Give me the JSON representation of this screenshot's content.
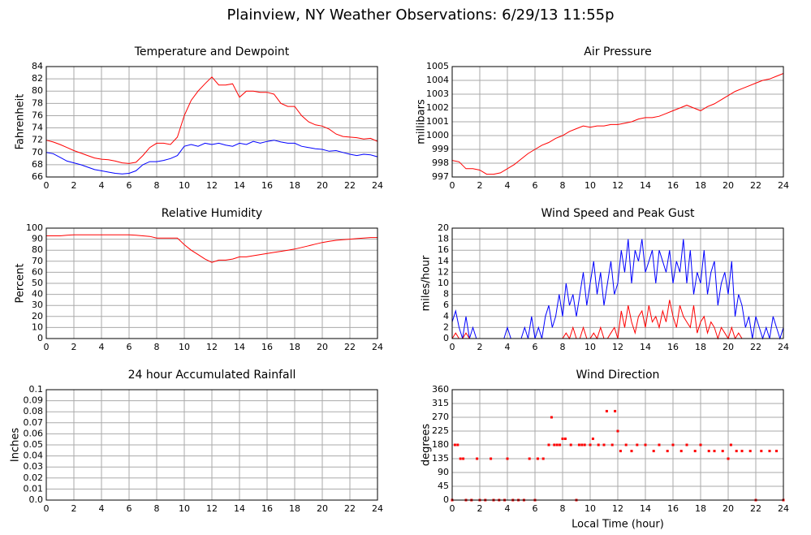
{
  "title": "Plainview, NY Weather Observations: 6/29/13 11:55p",
  "chart_data": [
    {
      "type": "line",
      "title": "Temperature and Dewpoint",
      "ylabel": "Fahrenheit",
      "x": [
        0,
        0.5,
        1,
        1.5,
        2,
        2.5,
        3,
        3.5,
        4,
        4.5,
        5,
        5.5,
        6,
        6.5,
        7,
        7.5,
        8,
        8.5,
        9,
        9.5,
        10,
        10.5,
        11,
        11.5,
        12,
        12.5,
        13,
        13.5,
        14,
        14.5,
        15,
        15.5,
        16,
        16.5,
        17,
        17.5,
        18,
        18.5,
        19,
        19.5,
        20,
        20.5,
        21,
        21.5,
        22,
        22.5,
        23,
        23.5,
        24
      ],
      "series": [
        {
          "color": "#ff0000",
          "values": [
            72,
            71.7,
            71.3,
            70.8,
            70.3,
            69.9,
            69.5,
            69.1,
            68.9,
            68.8,
            68.6,
            68.3,
            68.2,
            68.4,
            69.5,
            70.8,
            71.5,
            71.5,
            71.3,
            72.5,
            76,
            78.5,
            80,
            81.2,
            82.3,
            81,
            81,
            81.2,
            79,
            80,
            80,
            79.8,
            79.8,
            79.5,
            78,
            77.5,
            77.5,
            76,
            75,
            74.5,
            74.3,
            73.8,
            73,
            72.6,
            72.5,
            72.4,
            72.2,
            72.3,
            71.8
          ]
        },
        {
          "color": "#0000ff",
          "values": [
            70,
            69.8,
            69.2,
            68.6,
            68.3,
            68,
            67.6,
            67.2,
            67,
            66.8,
            66.6,
            66.5,
            66.6,
            67,
            68,
            68.5,
            68.5,
            68.7,
            69,
            69.5,
            71,
            71.3,
            71,
            71.5,
            71.3,
            71.5,
            71.2,
            71,
            71.5,
            71.3,
            71.8,
            71.5,
            71.8,
            72,
            71.7,
            71.5,
            71.5,
            71,
            70.8,
            70.6,
            70.5,
            70.2,
            70.3,
            70,
            69.7,
            69.5,
            69.7,
            69.6,
            69.3
          ]
        }
      ],
      "xlim": [
        0,
        24
      ],
      "xticks": [
        0,
        2,
        4,
        6,
        8,
        10,
        12,
        14,
        16,
        18,
        20,
        22,
        24
      ],
      "ylim": [
        66,
        84
      ],
      "yticks": [
        66,
        68,
        70,
        72,
        74,
        76,
        78,
        80,
        82,
        84
      ],
      "grid": true
    },
    {
      "type": "line",
      "title": "Air Pressure",
      "ylabel": "millibars",
      "x": [
        0,
        0.5,
        1,
        1.5,
        2,
        2.5,
        3,
        3.5,
        4,
        4.5,
        5,
        5.5,
        6,
        6.5,
        7,
        7.5,
        8,
        8.5,
        9,
        9.5,
        10,
        10.5,
        11,
        11.5,
        12,
        12.5,
        13,
        13.5,
        14,
        14.5,
        15,
        15.5,
        16,
        16.5,
        17,
        17.5,
        18,
        18.5,
        19,
        19.5,
        20,
        20.5,
        21,
        21.5,
        22,
        22.5,
        23,
        23.5,
        24
      ],
      "series": [
        {
          "color": "#ff0000",
          "values": [
            998.2,
            998.1,
            997.6,
            997.6,
            997.5,
            997.2,
            997.2,
            997.3,
            997.6,
            997.9,
            998.3,
            998.7,
            999,
            999.3,
            999.5,
            999.8,
            1000,
            1000.3,
            1000.5,
            1000.7,
            1000.6,
            1000.7,
            1000.7,
            1000.8,
            1000.8,
            1000.9,
            1001,
            1001.2,
            1001.3,
            1001.3,
            1001.4,
            1001.6,
            1001.8,
            1002,
            1002.2,
            1002,
            1001.8,
            1002.1,
            1002.3,
            1002.6,
            1002.9,
            1003.2,
            1003.4,
            1003.6,
            1003.8,
            1004,
            1004.1,
            1004.3,
            1004.5
          ]
        }
      ],
      "xlim": [
        0,
        24
      ],
      "xticks": [
        0,
        2,
        4,
        6,
        8,
        10,
        12,
        14,
        16,
        18,
        20,
        22,
        24
      ],
      "ylim": [
        997,
        1005
      ],
      "yticks": [
        997,
        998,
        999,
        1000,
        1001,
        1002,
        1003,
        1004,
        1005
      ],
      "grid": true
    },
    {
      "type": "line",
      "title": "Relative Humidity",
      "ylabel": "Percent",
      "x": [
        0,
        0.5,
        1,
        1.5,
        2,
        2.5,
        3,
        3.5,
        4,
        4.5,
        5,
        5.5,
        6,
        6.5,
        7,
        7.5,
        8,
        8.5,
        9,
        9.5,
        10,
        10.5,
        11,
        11.5,
        12,
        12.5,
        13,
        13.5,
        14,
        14.5,
        15,
        15.5,
        16,
        16.5,
        17,
        17.5,
        18,
        18.5,
        19,
        19.5,
        20,
        20.5,
        21,
        21.5,
        22,
        22.5,
        23,
        23.5,
        24
      ],
      "series": [
        {
          "color": "#ff0000",
          "values": [
            93,
            93,
            93,
            93.5,
            94,
            94,
            94,
            94,
            94,
            94,
            94,
            94,
            94,
            93.5,
            93,
            92.5,
            91,
            91,
            91,
            91,
            85,
            80,
            76,
            72,
            69,
            71,
            71,
            72,
            74,
            74,
            75,
            76,
            77,
            78,
            79,
            80,
            81,
            82.5,
            84,
            85.5,
            87,
            88,
            89,
            89.5,
            90,
            90.5,
            91,
            91.5,
            91.5
          ]
        }
      ],
      "xlim": [
        0,
        24
      ],
      "xticks": [
        0,
        2,
        4,
        6,
        8,
        10,
        12,
        14,
        16,
        18,
        20,
        22,
        24
      ],
      "ylim": [
        0,
        100
      ],
      "yticks": [
        0,
        10,
        20,
        30,
        40,
        50,
        60,
        70,
        80,
        90,
        100
      ],
      "grid": true
    },
    {
      "type": "line",
      "title": "Wind Speed and Peak Gust",
      "ylabel": "miles/hour",
      "x": [
        0,
        0.25,
        0.5,
        0.75,
        1,
        1.25,
        1.5,
        1.75,
        2,
        2.25,
        2.5,
        2.75,
        3,
        3.25,
        3.5,
        3.75,
        4,
        4.25,
        4.5,
        4.75,
        5,
        5.25,
        5.5,
        5.75,
        6,
        6.25,
        6.5,
        6.75,
        7,
        7.25,
        7.5,
        7.75,
        8,
        8.25,
        8.5,
        8.75,
        9,
        9.25,
        9.5,
        9.75,
        10,
        10.25,
        10.5,
        10.75,
        11,
        11.25,
        11.5,
        11.75,
        12,
        12.25,
        12.5,
        12.75,
        13,
        13.25,
        13.5,
        13.75,
        14,
        14.25,
        14.5,
        14.75,
        15,
        15.25,
        15.5,
        15.75,
        16,
        16.25,
        16.5,
        16.75,
        17,
        17.25,
        17.5,
        17.75,
        18,
        18.25,
        18.5,
        18.75,
        19,
        19.25,
        19.5,
        19.75,
        20,
        20.25,
        20.5,
        20.75,
        21,
        21.25,
        21.5,
        21.75,
        22,
        22.25,
        22.5,
        22.75,
        23,
        23.25,
        23.5,
        23.75,
        24
      ],
      "series": [
        {
          "color": "#0000ff",
          "values": [
            3,
            5,
            2,
            0,
            4,
            0,
            2,
            0,
            0,
            0,
            0,
            0,
            0,
            0,
            0,
            0,
            2,
            0,
            0,
            0,
            0,
            2,
            0,
            4,
            0,
            2,
            0,
            4,
            6,
            2,
            4,
            8,
            4,
            10,
            6,
            8,
            4,
            8,
            12,
            6,
            10,
            14,
            8,
            12,
            6,
            10,
            14,
            8,
            10,
            16,
            12,
            18,
            10,
            16,
            14,
            18,
            12,
            14,
            16,
            10,
            16,
            14,
            12,
            16,
            10,
            14,
            12,
            18,
            10,
            16,
            8,
            12,
            10,
            16,
            8,
            12,
            14,
            6,
            10,
            12,
            8,
            14,
            4,
            8,
            6,
            2,
            4,
            0,
            4,
            2,
            0,
            2,
            0,
            4,
            2,
            0,
            2
          ]
        },
        {
          "color": "#ff0000",
          "values": [
            0,
            1,
            0,
            0,
            1,
            0,
            0,
            0,
            0,
            0,
            0,
            0,
            0,
            0,
            0,
            0,
            0,
            0,
            0,
            0,
            0,
            0,
            0,
            0,
            0,
            0,
            0,
            0,
            0,
            0,
            0,
            0,
            0,
            1,
            0,
            2,
            0,
            0,
            2,
            0,
            0,
            1,
            0,
            2,
            0,
            0,
            1,
            2,
            0,
            5,
            2,
            6,
            3,
            1,
            4,
            5,
            2,
            6,
            3,
            4,
            2,
            5,
            3,
            7,
            4,
            2,
            6,
            4,
            3,
            2,
            6,
            1,
            3,
            4,
            1,
            3,
            2,
            0,
            2,
            1,
            0,
            2,
            0,
            1,
            0,
            0,
            0,
            0,
            0,
            0,
            0,
            0,
            0,
            0,
            0,
            0,
            0
          ]
        }
      ],
      "xlim": [
        0,
        24
      ],
      "xticks": [
        0,
        2,
        4,
        6,
        8,
        10,
        12,
        14,
        16,
        18,
        20,
        22,
        24
      ],
      "ylim": [
        0,
        20
      ],
      "yticks": [
        0,
        2,
        4,
        6,
        8,
        10,
        12,
        14,
        16,
        18,
        20
      ],
      "grid": true
    },
    {
      "type": "line",
      "title": "24 hour Accumulated Rainfall",
      "ylabel": "Inches",
      "x": [
        0,
        24
      ],
      "series": [
        {
          "color": "#ff0000",
          "values": [
            0,
            0
          ]
        }
      ],
      "xlim": [
        0,
        24
      ],
      "xticks": [
        0,
        2,
        4,
        6,
        8,
        10,
        12,
        14,
        16,
        18,
        20,
        22,
        24
      ],
      "ylim": [
        0,
        0.1
      ],
      "yticks": [
        {
          "value": 0,
          "label": "0.0"
        },
        0.01,
        0.02,
        0.03,
        0.04,
        0.05,
        0.06,
        0.07,
        0.08,
        0.09,
        0.1
      ],
      "grid": true
    },
    {
      "type": "scatter",
      "title": "Wind Direction",
      "ylabel": "degrees",
      "xlabel": "Local Time (hour)",
      "x": [
        0,
        0.2,
        0.4,
        0.6,
        0.8,
        1,
        1.4,
        1.8,
        2,
        2.4,
        2.8,
        3,
        3.4,
        3.8,
        4,
        4.4,
        4.8,
        5.2,
        5.6,
        6,
        6.2,
        6.6,
        7,
        7.2,
        7.4,
        7.6,
        7.8,
        8,
        8.2,
        8.6,
        9,
        9.2,
        9.4,
        9.6,
        10,
        10.2,
        10.6,
        11,
        11.2,
        11.6,
        11.8,
        12,
        12.2,
        12.6,
        13,
        13.4,
        14,
        14.6,
        15,
        15.6,
        16,
        16.6,
        17,
        17.6,
        18,
        18.6,
        19,
        19.6,
        20,
        20.2,
        20.6,
        21,
        21.6,
        22,
        22.4,
        23,
        23.5,
        24
      ],
      "series": [
        {
          "color": "#ff0000",
          "values": [
            0,
            180,
            180,
            135,
            135,
            0,
            0,
            135,
            0,
            0,
            135,
            0,
            0,
            0,
            135,
            0,
            0,
            0,
            135,
            0,
            135,
            135,
            180,
            270,
            180,
            180,
            180,
            200,
            200,
            180,
            0,
            180,
            180,
            180,
            180,
            200,
            180,
            180,
            290,
            180,
            290,
            225,
            160,
            180,
            160,
            180,
            180,
            160,
            180,
            160,
            180,
            160,
            180,
            160,
            180,
            160,
            160,
            160,
            135,
            180,
            160,
            160,
            160,
            0,
            160,
            160,
            160,
            0
          ]
        }
      ],
      "xlim": [
        0,
        24
      ],
      "xticks": [
        0,
        2,
        4,
        6,
        8,
        10,
        12,
        14,
        16,
        18,
        20,
        22,
        24
      ],
      "ylim": [
        0,
        360
      ],
      "yticks": [
        0,
        45,
        90,
        135,
        180,
        225,
        270,
        315,
        360
      ],
      "grid": true
    }
  ]
}
